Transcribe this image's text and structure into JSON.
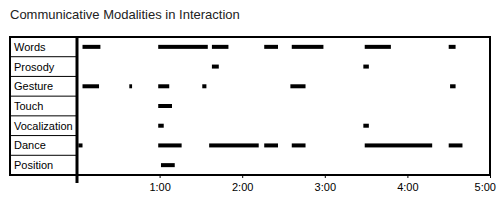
{
  "chart_data": {
    "type": "timeline",
    "title": "Communicative Modalities in Interaction",
    "orientation": "horizontal",
    "color": "#000000",
    "categories": [
      "Words",
      "Prosody",
      "Gesture",
      "Touch",
      "Vocalization",
      "Dance",
      "Position"
    ],
    "values": [
      [
        [
          4,
          17
        ],
        [
          59,
          95
        ],
        [
          98,
          110
        ],
        [
          136,
          146
        ],
        [
          156,
          179
        ],
        [
          209,
          228
        ],
        [
          270,
          275
        ]
      ],
      [
        [
          98,
          103
        ],
        [
          208,
          212
        ]
      ],
      [
        [
          4,
          16
        ],
        [
          38,
          40
        ],
        [
          59,
          67
        ],
        [
          91,
          94
        ],
        [
          155,
          166
        ],
        [
          271,
          275
        ]
      ],
      [
        [
          59,
          69
        ]
      ],
      [
        [
          59,
          63
        ],
        [
          208,
          212
        ]
      ],
      [
        [
          1,
          4
        ],
        [
          59,
          76
        ],
        [
          96,
          132
        ],
        [
          136,
          146
        ],
        [
          156,
          166
        ],
        [
          209,
          258
        ],
        [
          270,
          280
        ]
      ],
      [
        [
          61,
          71
        ]
      ]
    ],
    "xlim": [
      0,
      300
    ],
    "xticks": [
      {
        "value": 60,
        "label": "1:00"
      },
      {
        "value": 120,
        "label": "2:00"
      },
      {
        "value": 180,
        "label": "3:00"
      },
      {
        "value": 240,
        "label": "4:00"
      },
      {
        "value": 300,
        "label": "5:00"
      }
    ]
  }
}
